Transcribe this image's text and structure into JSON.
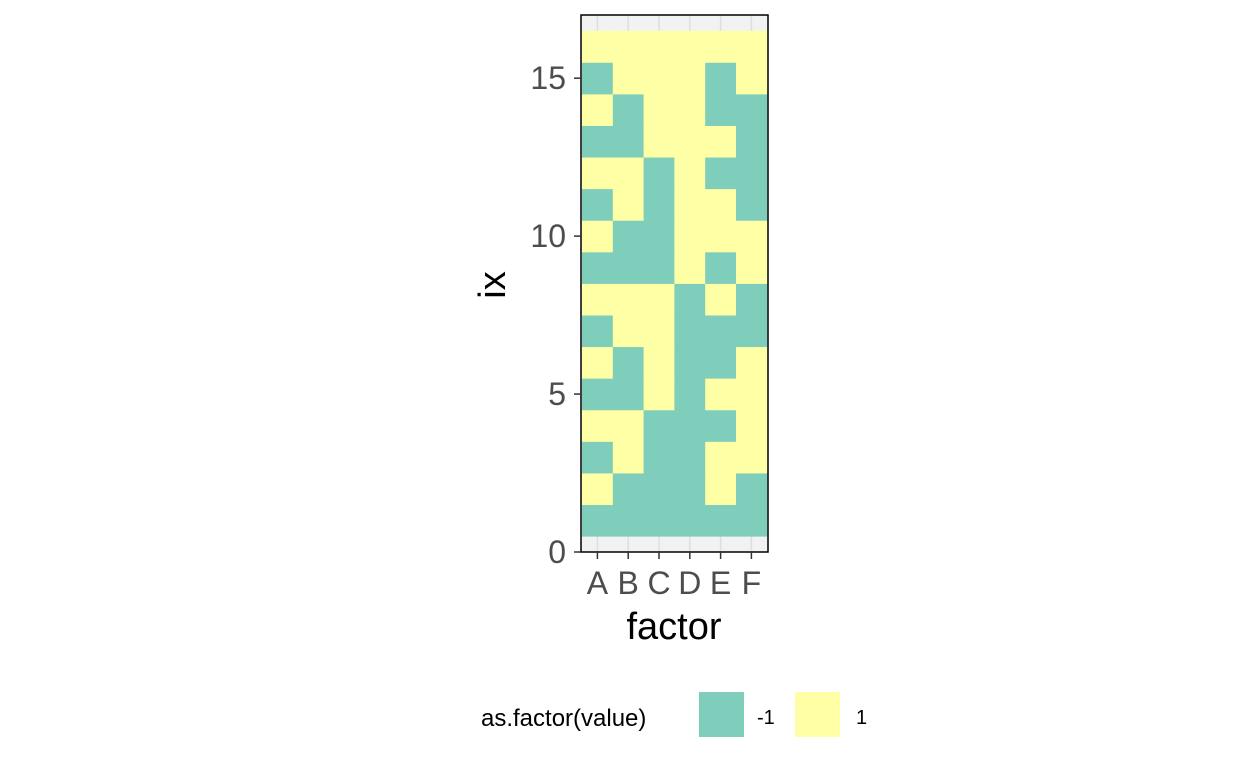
{
  "chart_data": {
    "type": "heatmap",
    "xlabel": "factor",
    "ylabel": "ix",
    "categories": [
      "A",
      "B",
      "C",
      "D",
      "E",
      "F"
    ],
    "rows": [
      1,
      2,
      3,
      4,
      5,
      6,
      7,
      8,
      9,
      10,
      11,
      12,
      13,
      14,
      15,
      16
    ],
    "values": [
      [
        -1,
        -1,
        -1,
        -1,
        -1,
        -1
      ],
      [
        1,
        -1,
        -1,
        -1,
        1,
        -1
      ],
      [
        -1,
        1,
        -1,
        -1,
        1,
        1
      ],
      [
        1,
        1,
        -1,
        -1,
        -1,
        1
      ],
      [
        -1,
        -1,
        1,
        -1,
        1,
        1
      ],
      [
        1,
        -1,
        1,
        -1,
        -1,
        1
      ],
      [
        -1,
        1,
        1,
        -1,
        -1,
        -1
      ],
      [
        1,
        1,
        1,
        -1,
        1,
        -1
      ],
      [
        -1,
        -1,
        -1,
        1,
        -1,
        1
      ],
      [
        1,
        -1,
        -1,
        1,
        1,
        1
      ],
      [
        -1,
        1,
        -1,
        1,
        1,
        -1
      ],
      [
        1,
        1,
        -1,
        1,
        -1,
        -1
      ],
      [
        -1,
        -1,
        1,
        1,
        1,
        -1
      ],
      [
        1,
        -1,
        1,
        1,
        -1,
        -1
      ],
      [
        -1,
        1,
        1,
        1,
        -1,
        1
      ],
      [
        1,
        1,
        1,
        1,
        1,
        1
      ]
    ],
    "y_ticks": [
      0,
      5,
      10,
      15
    ],
    "ylim": [
      0,
      17
    ],
    "grid": true,
    "legend": {
      "title": "as.factor(value)",
      "position": "bottom",
      "items": [
        {
          "label": "-1",
          "value": -1,
          "color": "#7FCDBB"
        },
        {
          "label": "1",
          "value": 1,
          "color": "#FFFFA5"
        }
      ]
    }
  }
}
